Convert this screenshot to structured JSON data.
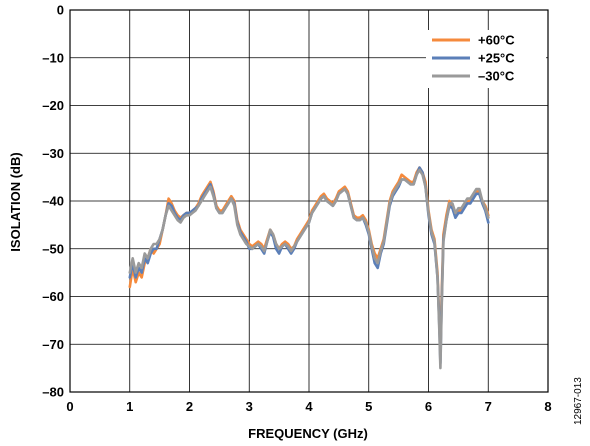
{
  "chart_data": {
    "type": "line",
    "title": "",
    "xlabel": "FREQUENCY (GHz)",
    "ylabel": "ISOLATION (dB)",
    "xlim": [
      0,
      8
    ],
    "ylim": [
      -80,
      0
    ],
    "x_ticks": [
      "0",
      "1",
      "2",
      "3",
      "4",
      "5",
      "6",
      "7",
      "8"
    ],
    "y_ticks": [
      "0",
      "–10",
      "–20",
      "–30",
      "–40",
      "–50",
      "–60",
      "–70",
      "–80"
    ],
    "grid": true,
    "legend_position": "top-right",
    "figure_id": "12967-013",
    "series": [
      {
        "name": "+60°C",
        "color": "#f58a3c",
        "x": [
          1.0,
          1.05,
          1.1,
          1.15,
          1.2,
          1.25,
          1.3,
          1.35,
          1.4,
          1.45,
          1.5,
          1.55,
          1.6,
          1.65,
          1.7,
          1.75,
          1.8,
          1.85,
          1.9,
          1.95,
          2.0,
          2.05,
          2.1,
          2.15,
          2.2,
          2.25,
          2.3,
          2.35,
          2.4,
          2.45,
          2.5,
          2.55,
          2.6,
          2.65,
          2.7,
          2.75,
          2.8,
          2.85,
          2.9,
          2.95,
          3.0,
          3.05,
          3.1,
          3.15,
          3.2,
          3.25,
          3.3,
          3.35,
          3.4,
          3.45,
          3.5,
          3.55,
          3.6,
          3.65,
          3.7,
          3.75,
          3.8,
          3.85,
          3.9,
          3.95,
          4.0,
          4.05,
          4.1,
          4.15,
          4.2,
          4.25,
          4.3,
          4.35,
          4.4,
          4.45,
          4.5,
          4.55,
          4.6,
          4.65,
          4.7,
          4.75,
          4.8,
          4.85,
          4.9,
          4.95,
          5.0,
          5.05,
          5.1,
          5.15,
          5.2,
          5.25,
          5.3,
          5.35,
          5.4,
          5.45,
          5.5,
          5.55,
          5.6,
          5.65,
          5.7,
          5.75,
          5.8,
          5.85,
          5.9,
          5.95,
          6.0,
          6.05,
          6.1,
          6.15,
          6.18,
          6.2,
          6.22,
          6.25,
          6.3,
          6.35,
          6.4,
          6.45,
          6.5,
          6.55,
          6.6,
          6.65,
          6.7,
          6.75,
          6.8,
          6.85,
          6.9,
          6.95,
          7.0
        ],
        "y": [
          -58,
          -54,
          -57,
          -55,
          -56,
          -53,
          -52,
          -50,
          -51,
          -50,
          -49,
          -46,
          -43,
          -39.5,
          -40.5,
          -42,
          -43,
          -43.5,
          -43,
          -42.5,
          -42.5,
          -42,
          -41.5,
          -40.5,
          -39,
          -38,
          -37,
          -36,
          -38,
          -41,
          -42,
          -42,
          -41,
          -40,
          -39,
          -40,
          -44,
          -46,
          -47,
          -48,
          -49,
          -49.5,
          -49,
          -48.5,
          -49,
          -50,
          -48,
          -46,
          -47,
          -49,
          -50,
          -49,
          -48.5,
          -49,
          -50,
          -49.5,
          -48,
          -47,
          -46,
          -45,
          -44,
          -42,
          -41,
          -40,
          -39,
          -38.5,
          -39.5,
          -40,
          -40.5,
          -39.5,
          -38,
          -37.5,
          -37,
          -38,
          -40.5,
          -43,
          -43.5,
          -43.5,
          -43,
          -44,
          -46,
          -49,
          -51,
          -52,
          -50,
          -48,
          -44,
          -40,
          -38,
          -37,
          -36,
          -34.5,
          -35,
          -35.5,
          -36,
          -36,
          -34,
          -33,
          -34,
          -36,
          -42,
          -46,
          -48,
          -55,
          -65,
          -72,
          -60,
          -47,
          -43,
          -40,
          -41,
          -43,
          -42,
          -42,
          -41,
          -40,
          -40,
          -39,
          -38,
          -38,
          -40,
          -41,
          -43
        ]
      },
      {
        "name": "+25°C",
        "color": "#5b7fb8",
        "x": [
          1.0,
          1.05,
          1.1,
          1.15,
          1.2,
          1.25,
          1.3,
          1.35,
          1.4,
          1.45,
          1.5,
          1.55,
          1.6,
          1.65,
          1.7,
          1.75,
          1.8,
          1.85,
          1.9,
          1.95,
          2.0,
          2.05,
          2.1,
          2.15,
          2.2,
          2.25,
          2.3,
          2.35,
          2.4,
          2.45,
          2.5,
          2.55,
          2.6,
          2.65,
          2.7,
          2.75,
          2.8,
          2.85,
          2.9,
          2.95,
          3.0,
          3.05,
          3.1,
          3.15,
          3.2,
          3.25,
          3.3,
          3.35,
          3.4,
          3.45,
          3.5,
          3.55,
          3.6,
          3.65,
          3.7,
          3.75,
          3.8,
          3.85,
          3.9,
          3.95,
          4.0,
          4.05,
          4.1,
          4.15,
          4.2,
          4.25,
          4.3,
          4.35,
          4.4,
          4.45,
          4.5,
          4.55,
          4.6,
          4.65,
          4.7,
          4.75,
          4.8,
          4.85,
          4.9,
          4.95,
          5.0,
          5.05,
          5.1,
          5.15,
          5.2,
          5.25,
          5.3,
          5.35,
          5.4,
          5.45,
          5.5,
          5.55,
          5.6,
          5.65,
          5.7,
          5.75,
          5.8,
          5.85,
          5.9,
          5.95,
          6.0,
          6.05,
          6.1,
          6.15,
          6.18,
          6.2,
          6.22,
          6.25,
          6.3,
          6.35,
          6.4,
          6.45,
          6.5,
          6.55,
          6.6,
          6.65,
          6.7,
          6.75,
          6.8,
          6.85,
          6.9,
          6.95,
          7.0
        ],
        "y": [
          -56,
          -53,
          -56,
          -54,
          -55,
          -52,
          -53,
          -51,
          -50,
          -50,
          -48,
          -46,
          -43,
          -40.5,
          -41,
          -42.5,
          -43.5,
          -44,
          -43,
          -42.5,
          -42.5,
          -42,
          -41.5,
          -41,
          -39.5,
          -38.5,
          -37.5,
          -36.5,
          -38.5,
          -41.5,
          -42.5,
          -42.5,
          -41.5,
          -40.5,
          -39.5,
          -40.5,
          -44.5,
          -46.5,
          -47.5,
          -48.5,
          -50,
          -50,
          -49.5,
          -49,
          -50,
          -51,
          -48.5,
          -46.5,
          -47.5,
          -50,
          -51,
          -49.5,
          -49,
          -50,
          -51,
          -50,
          -48.5,
          -47.5,
          -46.5,
          -45.5,
          -44.5,
          -42.5,
          -41.5,
          -40.5,
          -39.5,
          -39,
          -40,
          -40.5,
          -41,
          -40,
          -38.5,
          -38,
          -37.5,
          -38.5,
          -41,
          -43.5,
          -44,
          -44,
          -43.5,
          -45,
          -47,
          -50,
          -53,
          -54,
          -51,
          -49,
          -45,
          -41,
          -39,
          -38,
          -37,
          -35.5,
          -35.5,
          -36,
          -36.5,
          -36.5,
          -34.5,
          -33,
          -34,
          -37,
          -43,
          -47,
          -49,
          -56,
          -66,
          -74,
          -62,
          -48,
          -44,
          -41,
          -41.5,
          -43.5,
          -42.5,
          -42.5,
          -41.5,
          -40.5,
          -40.5,
          -39.5,
          -38.5,
          -38.5,
          -40.5,
          -42,
          -44.5
        ]
      },
      {
        "name": "–30°C",
        "color": "#9a9a9a",
        "x": [
          1.0,
          1.05,
          1.1,
          1.15,
          1.2,
          1.25,
          1.3,
          1.35,
          1.4,
          1.45,
          1.5,
          1.55,
          1.6,
          1.65,
          1.7,
          1.75,
          1.8,
          1.85,
          1.9,
          1.95,
          2.0,
          2.05,
          2.1,
          2.15,
          2.2,
          2.25,
          2.3,
          2.35,
          2.4,
          2.45,
          2.5,
          2.55,
          2.6,
          2.65,
          2.7,
          2.75,
          2.8,
          2.85,
          2.9,
          2.95,
          3.0,
          3.05,
          3.1,
          3.15,
          3.2,
          3.25,
          3.3,
          3.35,
          3.4,
          3.45,
          3.5,
          3.55,
          3.6,
          3.65,
          3.7,
          3.75,
          3.8,
          3.85,
          3.9,
          3.95,
          4.0,
          4.05,
          4.1,
          4.15,
          4.2,
          4.25,
          4.3,
          4.35,
          4.4,
          4.45,
          4.5,
          4.55,
          4.6,
          4.65,
          4.7,
          4.75,
          4.8,
          4.85,
          4.9,
          4.95,
          5.0,
          5.05,
          5.1,
          5.15,
          5.2,
          5.25,
          5.3,
          5.35,
          5.4,
          5.45,
          5.5,
          5.55,
          5.6,
          5.65,
          5.7,
          5.75,
          5.8,
          5.85,
          5.9,
          5.95,
          6.0,
          6.05,
          6.1,
          6.15,
          6.18,
          6.2,
          6.22,
          6.25,
          6.3,
          6.35,
          6.4,
          6.45,
          6.5,
          6.55,
          6.6,
          6.65,
          6.7,
          6.75,
          6.8,
          6.85,
          6.9,
          6.95,
          7.0
        ],
        "y": [
          -55,
          -52,
          -55,
          -53,
          -54,
          -51,
          -52,
          -50,
          -49,
          -49,
          -48,
          -46,
          -43,
          -41,
          -42,
          -43,
          -44,
          -44.5,
          -43.5,
          -43,
          -43,
          -42.5,
          -42,
          -41,
          -40,
          -39,
          -38,
          -37,
          -39,
          -41.5,
          -42.5,
          -42.5,
          -41.5,
          -40.5,
          -39.5,
          -41,
          -45,
          -47,
          -48,
          -49,
          -49.5,
          -50,
          -49.5,
          -49,
          -49.5,
          -50.5,
          -48.5,
          -46,
          -47,
          -49,
          -50,
          -49.5,
          -49,
          -49.5,
          -50.5,
          -49.5,
          -48.5,
          -47.5,
          -46.5,
          -45.5,
          -44.5,
          -42.5,
          -41.5,
          -40.5,
          -39.5,
          -39,
          -40,
          -40.5,
          -41,
          -40,
          -38.5,
          -38,
          -37.5,
          -38.5,
          -41,
          -43.5,
          -44,
          -44,
          -43.5,
          -44.5,
          -46.5,
          -49.5,
          -52,
          -53,
          -50.5,
          -48.5,
          -44.5,
          -40.5,
          -38.5,
          -37.5,
          -36.5,
          -35.5,
          -35.5,
          -36,
          -36.5,
          -36.5,
          -34.5,
          -33.5,
          -34.5,
          -37,
          -42.5,
          -46.5,
          -48.5,
          -56,
          -67,
          -75,
          -63,
          -48.5,
          -44,
          -40.5,
          -40.5,
          -42.5,
          -41.5,
          -41.5,
          -40.5,
          -39.5,
          -39.5,
          -38.5,
          -37.5,
          -37.5,
          -40,
          -41.5,
          -43.5
        ]
      }
    ]
  }
}
